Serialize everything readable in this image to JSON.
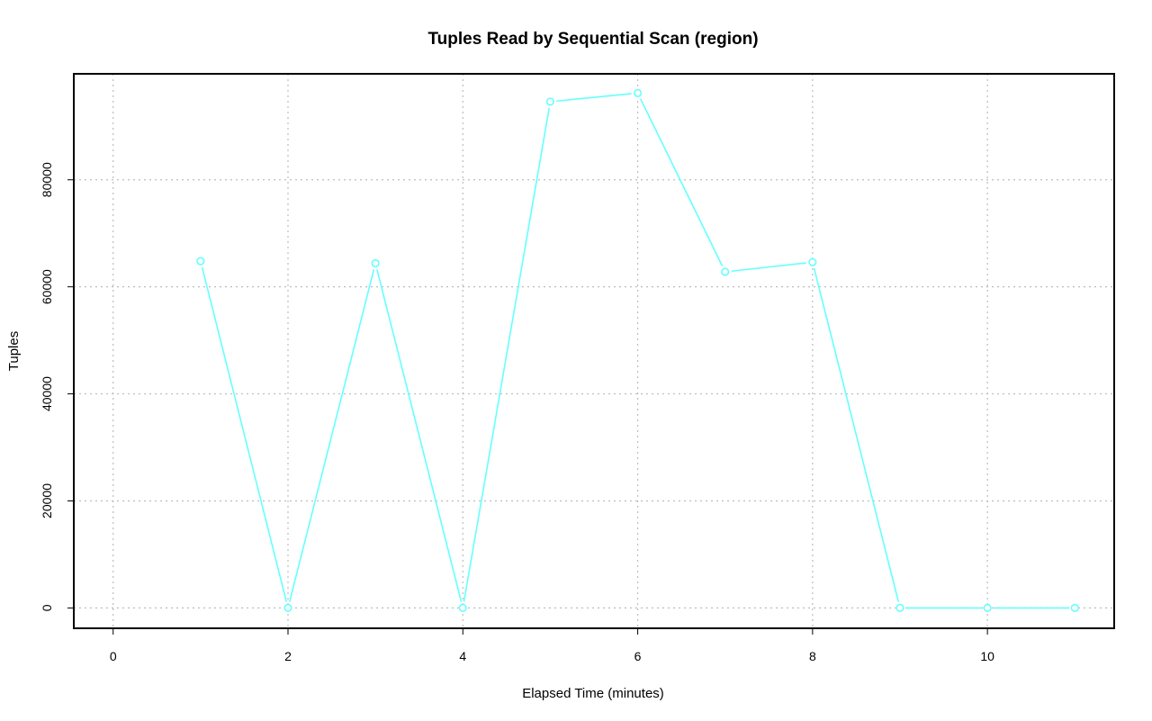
{
  "chart_data": {
    "type": "line",
    "title": "Tuples Read by Sequential Scan (region)",
    "xlabel": "Elapsed Time (minutes)",
    "ylabel": "Tuples",
    "xlim": [
      -0.45,
      11.45
    ],
    "ylim": [
      -3800,
      99800
    ],
    "x_ticks": [
      0,
      2,
      4,
      6,
      8,
      10
    ],
    "y_ticks": [
      0,
      20000,
      40000,
      60000,
      80000
    ],
    "grid": true,
    "series": [
      {
        "color": "#66ffff",
        "marker": "circle-open",
        "x": [
          1,
          2,
          3,
          4,
          5,
          6,
          7,
          8,
          9,
          10,
          11
        ],
        "values": [
          64800,
          0,
          64400,
          0,
          94600,
          96200,
          62800,
          64600,
          0,
          0,
          0
        ]
      }
    ]
  }
}
